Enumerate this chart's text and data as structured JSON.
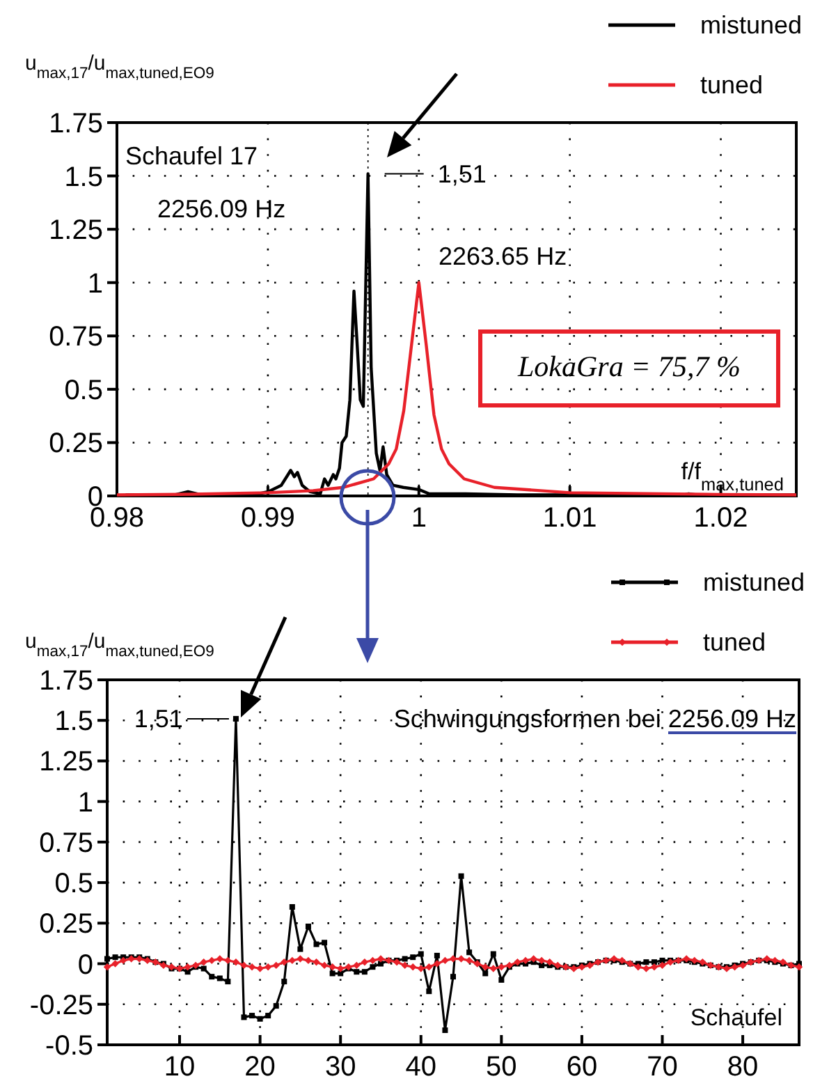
{
  "chart_data": [
    {
      "type": "line",
      "xlabel": "f/f$_{max,tuned}$",
      "ylabel": "u$_{max,17}$/u$_{max,tuned,EO9}$",
      "xlim": [
        0.98,
        1.025
      ],
      "ylim": [
        0,
        1.75
      ],
      "xticks": [
        0.98,
        0.99,
        1,
        1.01,
        1.02
      ],
      "yticks": [
        0,
        0.25,
        0.5,
        0.75,
        1,
        1.25,
        1.5,
        1.75
      ],
      "grid": true,
      "legend": "top right",
      "marker": "none",
      "ref_lines": [
        {
          "axis": "x",
          "value": 0.99663,
          "color": "#000000",
          "line_style": "dotted"
        }
      ],
      "annotations": [
        "Schaufel 17",
        "2256.09 Hz",
        "2263.65 Hz",
        {
          "text": "1,51",
          "x": 0.99663,
          "y": 1.51
        },
        "LokaGra = 75,7 %"
      ],
      "series": [
        {
          "name": "mistuned",
          "color": "#000000",
          "x": [
            0.98058,
            0.98385,
            0.98471,
            0.98557,
            0.98935,
            0.99003,
            0.99089,
            0.99151,
            0.99175,
            0.99196,
            0.99227,
            0.99278,
            0.99347,
            0.99375,
            0.99399,
            0.99433,
            0.9945,
            0.99474,
            0.99491,
            0.99519,
            0.99543,
            0.9957,
            0.99588,
            0.99612,
            0.99632,
            0.99663,
            0.99684,
            0.99718,
            0.99742,
            0.99763,
            0.99787,
            0.99828,
            0.99897,
            1.0,
            1.00069,
            1.00309,
            1.00653,
            1.01753,
            1.01787,
            1.01838,
            1.025
          ],
          "values": [
            0.005,
            0.005,
            0.02,
            0.005,
            0.01,
            0.02,
            0.05,
            0.12,
            0.09,
            0.11,
            0.05,
            0.02,
            0.01,
            0.08,
            0.05,
            0.1,
            0.08,
            0.13,
            0.25,
            0.28,
            0.45,
            0.96,
            0.75,
            0.45,
            0.42,
            1.51,
            0.6,
            0.2,
            0.12,
            0.23,
            0.1,
            0.05,
            0.04,
            0.03,
            0.01,
            0.01,
            0.005,
            0.005,
            0.01,
            0.005,
            0.005
          ]
        },
        {
          "name": "tuned",
          "color": "#e8212a",
          "x": [
            0.98,
            0.985,
            0.99,
            0.993,
            0.995,
            0.997,
            0.998,
            0.9985,
            0.999,
            0.9995,
            1.0,
            1.0005,
            1.001,
            1.0015,
            1.002,
            1.003,
            1.005,
            1.01,
            1.02,
            1.025
          ],
          "values": [
            0.005,
            0.008,
            0.015,
            0.025,
            0.04,
            0.08,
            0.15,
            0.22,
            0.4,
            0.7,
            1.0,
            0.7,
            0.38,
            0.22,
            0.15,
            0.08,
            0.04,
            0.015,
            0.007,
            0.005
          ]
        }
      ]
    },
    {
      "type": "line",
      "xlabel": "Schaufel",
      "ylabel": "u$_{max,17}$/u$_{max,tuned,EO9}$",
      "xlim": [
        1,
        87
      ],
      "ylim": [
        -0.5,
        1.75
      ],
      "xticks": [
        10,
        20,
        30,
        40,
        50,
        60,
        70,
        80
      ],
      "yticks": [
        -0.5,
        -0.25,
        0,
        0.25,
        0.5,
        0.75,
        1,
        1.25,
        1.5,
        1.75
      ],
      "grid": true,
      "legend": "top right",
      "annotations": [
        {
          "text": "1,51",
          "x": 17,
          "y": 1.51
        },
        "Schwingungsformen bei 2256.09 Hz"
      ],
      "x": [
        1,
        2,
        3,
        4,
        5,
        6,
        7,
        8,
        9,
        10,
        11,
        12,
        13,
        14,
        15,
        16,
        17,
        18,
        19,
        20,
        21,
        22,
        23,
        24,
        25,
        26,
        27,
        28,
        29,
        30,
        31,
        32,
        33,
        34,
        35,
        36,
        37,
        38,
        39,
        40,
        41,
        42,
        43,
        44,
        45,
        46,
        47,
        48,
        49,
        50,
        51,
        52,
        53,
        54,
        55,
        56,
        57,
        58,
        59,
        60,
        61,
        62,
        63,
        64,
        65,
        66,
        67,
        68,
        69,
        70,
        71,
        72,
        73,
        74,
        75,
        76,
        77,
        78,
        79,
        80,
        81,
        82,
        83,
        84,
        85,
        86,
        87
      ],
      "series": [
        {
          "name": "mistuned",
          "color": "#000000",
          "marker": "square",
          "values": [
            0.03,
            0.04,
            0.04,
            0.04,
            0.04,
            0.03,
            0.01,
            0.0,
            -0.03,
            -0.03,
            -0.05,
            -0.02,
            -0.03,
            -0.08,
            -0.09,
            -0.11,
            1.51,
            -0.33,
            -0.32,
            -0.34,
            -0.32,
            -0.26,
            -0.11,
            0.35,
            0.09,
            0.23,
            0.12,
            0.13,
            -0.06,
            -0.06,
            -0.03,
            -0.05,
            -0.05,
            -0.02,
            0.0,
            0.02,
            0.02,
            0.03,
            0.04,
            0.06,
            -0.17,
            0.05,
            -0.41,
            -0.08,
            0.54,
            0.07,
            0.01,
            -0.06,
            0.06,
            -0.1,
            -0.02,
            0.0,
            0.0,
            0.01,
            -0.01,
            -0.01,
            -0.02,
            -0.02,
            -0.02,
            -0.01,
            0.0,
            0.01,
            0.02,
            0.02,
            0.01,
            0.0,
            0.0,
            0.01,
            0.01,
            0.02,
            0.02,
            0.02,
            0.02,
            0.01,
            0.0,
            -0.01,
            -0.02,
            -0.02,
            -0.01,
            0.0,
            0.01,
            0.02,
            0.02,
            0.01,
            0.0,
            -0.01,
            0.0
          ]
        },
        {
          "name": "tuned",
          "color": "#e8212a",
          "marker": "diamond",
          "values": [
            -0.02,
            0.0,
            0.02,
            0.03,
            0.03,
            0.02,
            0.01,
            -0.01,
            -0.02,
            -0.03,
            -0.02,
            -0.01,
            0.01,
            0.02,
            0.03,
            0.02,
            0.01,
            -0.01,
            -0.02,
            -0.03,
            -0.02,
            -0.01,
            0.01,
            0.02,
            0.03,
            0.02,
            0.01,
            -0.01,
            -0.02,
            -0.03,
            -0.02,
            -0.01,
            0.01,
            0.02,
            0.03,
            0.02,
            0.01,
            -0.01,
            -0.02,
            -0.03,
            -0.02,
            0.0,
            0.02,
            0.03,
            0.03,
            0.02,
            0.0,
            -0.02,
            -0.03,
            -0.02,
            -0.01,
            0.01,
            0.02,
            0.03,
            0.02,
            0.01,
            -0.01,
            -0.02,
            -0.03,
            -0.02,
            -0.01,
            0.01,
            0.02,
            0.03,
            0.02,
            0.0,
            -0.02,
            -0.03,
            -0.02,
            -0.01,
            0.01,
            0.02,
            0.03,
            0.02,
            0.01,
            -0.01,
            -0.02,
            -0.03,
            -0.02,
            -0.01,
            0.01,
            0.02,
            0.03,
            0.02,
            0.01,
            -0.01,
            -0.02
          ]
        }
      ]
    }
  ]
}
